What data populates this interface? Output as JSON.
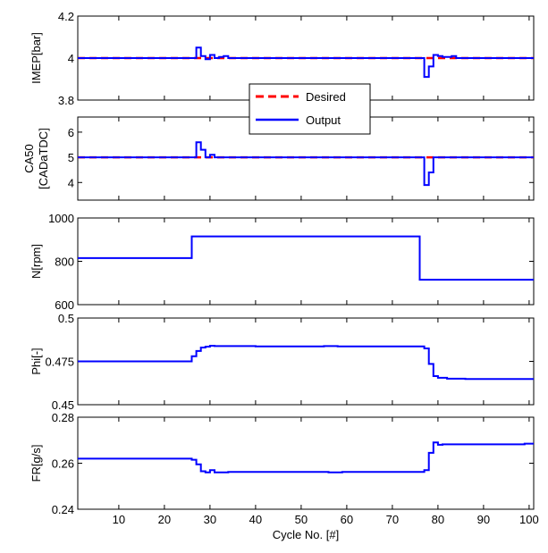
{
  "chart_data": [
    {
      "type": "line",
      "ylabel": "IMEP[bar]",
      "ylim": [
        3.8,
        4.2
      ],
      "yticks": [
        3.8,
        4,
        4.2
      ],
      "ytick_labels": [
        "3.8",
        "4",
        "4.2"
      ],
      "legend": {
        "placement": "bottom-center",
        "entries": [
          "Desired",
          "Output"
        ]
      },
      "series": [
        {
          "name": "Desired",
          "color": "#ff0000",
          "style": "dashed",
          "x": [
            1,
            101
          ],
          "y": [
            4.0,
            4.0
          ]
        },
        {
          "name": "Output",
          "color": "#0000ff",
          "style": "step",
          "x": [
            1,
            26,
            27,
            28,
            29,
            30,
            31,
            32,
            33,
            34,
            35,
            77,
            78,
            79,
            80,
            81,
            82,
            83,
            84,
            101
          ],
          "y": [
            4.0,
            4.0,
            4.05,
            4.01,
            3.995,
            4.015,
            4.0,
            4.005,
            4.01,
            4.0,
            4.0,
            3.91,
            3.96,
            4.015,
            4.01,
            4.005,
            4.005,
            4.01,
            4.0,
            4.0
          ]
        }
      ]
    },
    {
      "type": "line",
      "ylabel": [
        "CA50",
        "[CADaTDC]"
      ],
      "ylim": [
        3.3,
        6.6
      ],
      "yticks": [
        4,
        5,
        6
      ],
      "ytick_labels": [
        "4",
        "5",
        "6"
      ],
      "series": [
        {
          "name": "Desired",
          "color": "#ff0000",
          "style": "dashed",
          "x": [
            1,
            101
          ],
          "y": [
            5.0,
            5.0
          ]
        },
        {
          "name": "Output",
          "color": "#0000ff",
          "style": "step",
          "x": [
            1,
            26,
            27,
            28,
            29,
            30,
            31,
            77,
            78,
            79,
            80,
            101
          ],
          "y": [
            5.0,
            5.0,
            5.6,
            5.3,
            5.0,
            5.1,
            5.0,
            3.9,
            4.4,
            5.0,
            5.0,
            5.0
          ]
        }
      ]
    },
    {
      "type": "line",
      "ylabel": "N[rpm]",
      "ylim": [
        600,
        1000
      ],
      "yticks": [
        600,
        800,
        1000
      ],
      "ytick_labels": [
        "600",
        "800",
        "1000"
      ],
      "series": [
        {
          "name": "",
          "color": "#0000ff",
          "style": "step",
          "x": [
            1,
            26,
            76,
            101
          ],
          "y": [
            815,
            915,
            715,
            715
          ]
        }
      ]
    },
    {
      "type": "line",
      "ylabel": "Phi[-]",
      "ylim": [
        0.45,
        0.5
      ],
      "yticks": [
        0.45,
        0.475,
        0.5
      ],
      "ytick_labels": [
        "0.45",
        "0.475",
        "0.5"
      ],
      "series": [
        {
          "name": "",
          "color": "#0000ff",
          "style": "step",
          "x": [
            1,
            26,
            27,
            28,
            29,
            30,
            31,
            40,
            55,
            58,
            77,
            78,
            79,
            80,
            82,
            86,
            101
          ],
          "y": [
            0.475,
            0.478,
            0.481,
            0.483,
            0.4835,
            0.484,
            0.4838,
            0.4836,
            0.4838,
            0.4836,
            0.4825,
            0.4735,
            0.4665,
            0.4655,
            0.465,
            0.4648,
            0.4648
          ]
        }
      ]
    },
    {
      "type": "line",
      "ylabel": "FR[g/s]",
      "ylim": [
        0.24,
        0.28
      ],
      "yticks": [
        0.24,
        0.26,
        0.28
      ],
      "ytick_labels": [
        "0.24",
        "0.26",
        "0.28"
      ],
      "xlabel": "Cycle No. [#]",
      "series": [
        {
          "name": "",
          "color": "#0000ff",
          "style": "step",
          "x": [
            1,
            26,
            27,
            28,
            29,
            30,
            31,
            34,
            56,
            59,
            77,
            78,
            79,
            80,
            81,
            99,
            101
          ],
          "y": [
            0.262,
            0.2615,
            0.2595,
            0.2565,
            0.256,
            0.257,
            0.256,
            0.2562,
            0.256,
            0.2562,
            0.257,
            0.2645,
            0.269,
            0.268,
            0.2682,
            0.2685,
            0.2685
          ]
        }
      ]
    }
  ],
  "x_axis": {
    "xlim": [
      1,
      101
    ],
    "ticks": [
      10,
      20,
      30,
      40,
      50,
      60,
      70,
      80,
      90,
      100
    ],
    "tick_labels": [
      "10",
      "20",
      "30",
      "40",
      "50",
      "60",
      "70",
      "80",
      "90",
      "100"
    ],
    "label": "Cycle No. [#]"
  },
  "legend_labels": [
    "Desired",
    "Output"
  ]
}
